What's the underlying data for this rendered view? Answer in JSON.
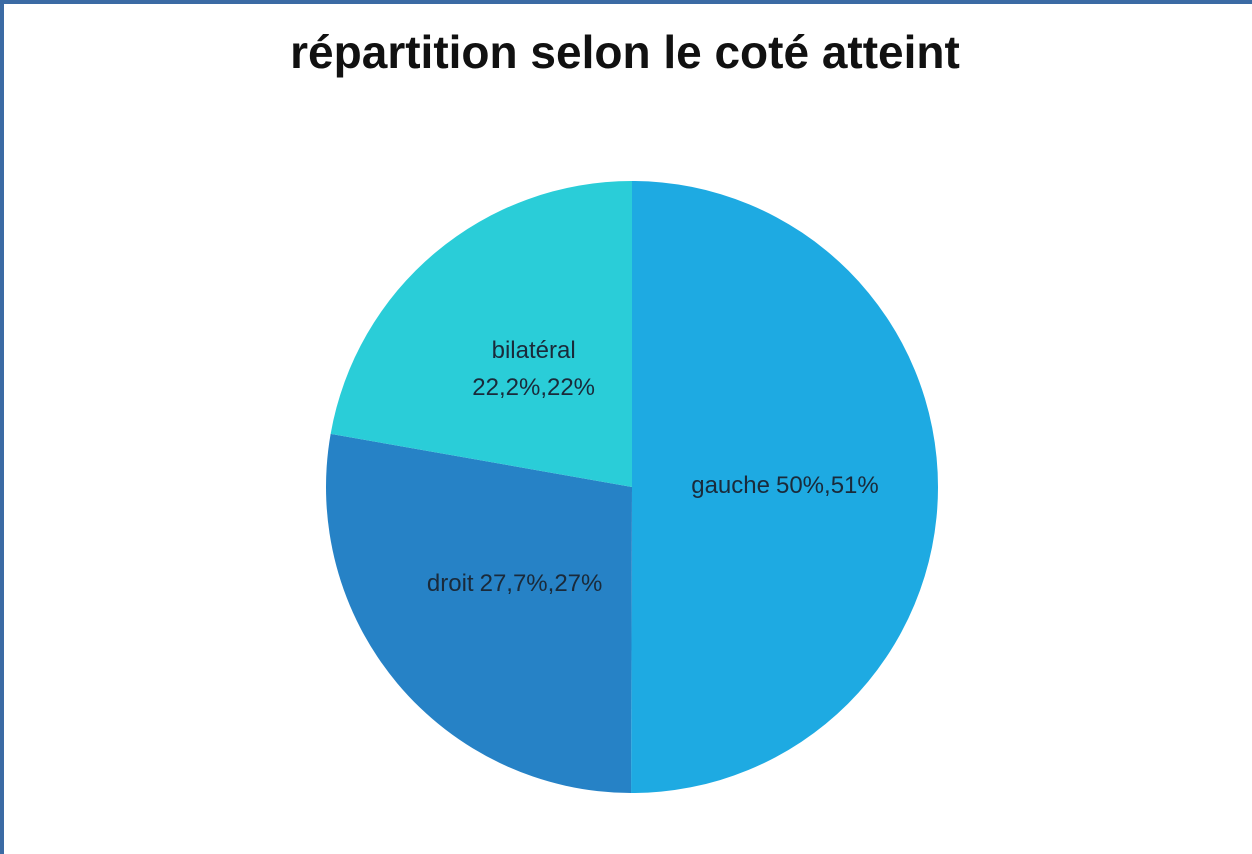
{
  "chart_data": {
    "type": "pie",
    "title": "répartition selon le coté atteint",
    "categories": [
      "gauche",
      "droit",
      "bilatéral"
    ],
    "values": [
      50,
      27.7,
      22.2
    ],
    "value_labels": [
      "50%,51%",
      "27,7%,27%",
      "22,2%,22%"
    ],
    "colors": [
      "#1eaae2",
      "#2682c6",
      "#2acdd8"
    ]
  }
}
